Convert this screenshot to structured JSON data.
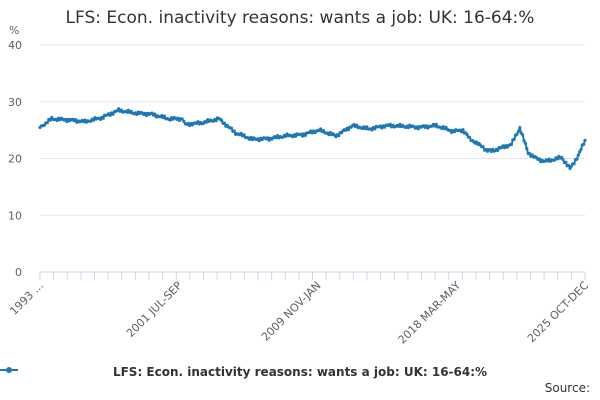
{
  "chart_data": {
    "type": "line",
    "title": "LFS: Econ. inactivity reasons: wants a job: UK: 16-64:%",
    "unit_label": "%",
    "ylim": [
      0,
      40
    ],
    "y_ticks": [
      0,
      10,
      20,
      30,
      40
    ],
    "x_tick_labels": [
      "1993 ...",
      "2001 JUL-SEP",
      "2009 NOV-JAN",
      "2018 MAR-MAY",
      "2025 OCT-DEC"
    ],
    "x_range": [
      "1993 MAR-MAY",
      "2025 OCT-DEC"
    ],
    "grid": "horizontal",
    "legend_position": "bottom-center",
    "series": [
      {
        "name": "LFS: Econ. inactivity reasons: wants a job: UK: 16-64:%",
        "color": "#1f78b4",
        "x": [
          1993.3,
          1994.0,
          1995.0,
          1996.0,
          1997.0,
          1998.0,
          1999.0,
          2000.0,
          2001.0,
          2001.8,
          2002.0,
          2003.0,
          2004.0,
          2005.0,
          2006.0,
          2007.0,
          2008.0,
          2009.0,
          2010.0,
          2011.0,
          2012.0,
          2013.0,
          2014.0,
          2015.0,
          2016.0,
          2017.0,
          2018.0,
          2018.6,
          2019.0,
          2019.8,
          2020.0,
          2020.3,
          2020.6,
          2021.0,
          2021.5,
          2022.0,
          2022.5,
          2023.0,
          2023.5,
          2024.0,
          2024.5,
          2025.0,
          2025.5,
          2025.9
        ],
        "y": [
          25.5,
          27.0,
          26.8,
          26.5,
          27.2,
          28.5,
          28.0,
          27.8,
          27.0,
          27.0,
          26.0,
          26.3,
          27.0,
          24.5,
          23.4,
          23.5,
          24.0,
          24.2,
          25.0,
          24.0,
          25.8,
          25.2,
          25.8,
          25.7,
          25.5,
          25.8,
          24.8,
          25.0,
          23.5,
          22.0,
          21.5,
          21.3,
          21.6,
          22.0,
          22.5,
          25.4,
          21.0,
          20.0,
          19.5,
          19.8,
          20.2,
          18.2,
          20.5,
          23.2
        ]
      }
    ]
  },
  "legend": {
    "label": "LFS: Econ. inactivity reasons: wants a job: UK: 16-64:%"
  },
  "source_label": "Source:"
}
